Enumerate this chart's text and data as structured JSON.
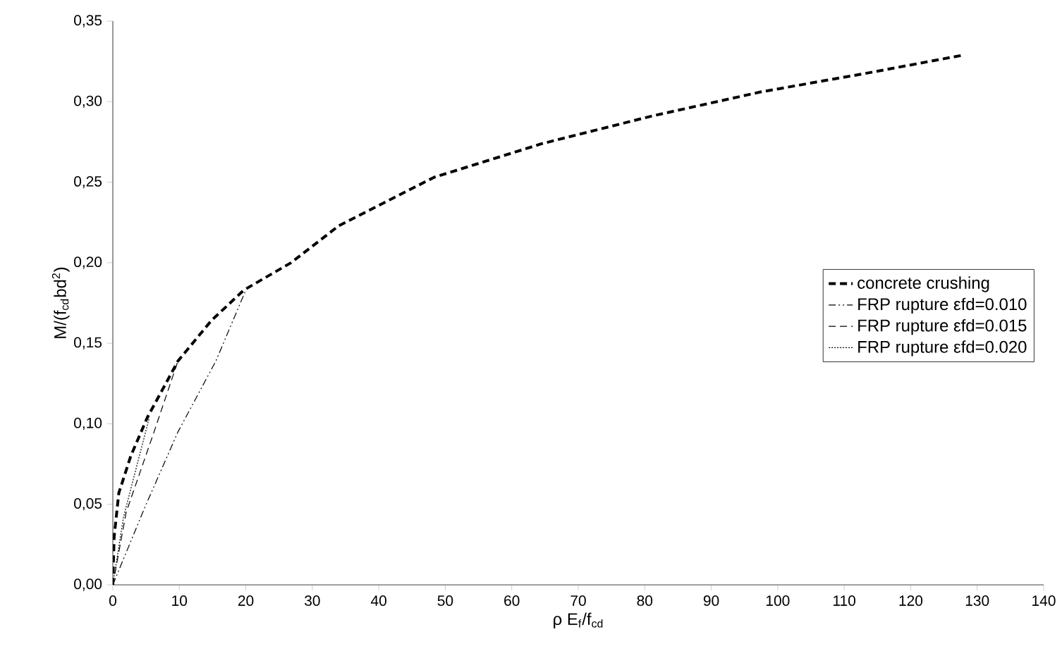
{
  "chart_data": {
    "type": "line",
    "xlabel": "ρ E$_{f}$/f$_{cd}$",
    "ylabel": "M/(f$_{cd}$bd$^{2}$)",
    "xlim": [
      0,
      140
    ],
    "xticks": [
      0,
      10,
      20,
      30,
      40,
      50,
      60,
      70,
      80,
      90,
      100,
      110,
      120,
      130,
      140
    ],
    "ylim": [
      0,
      0.35
    ],
    "yticks": [
      {
        "value": 0,
        "label": "0,00"
      },
      {
        "value": 0.05,
        "label": "0,05"
      },
      {
        "value": 0.1,
        "label": "0,10"
      },
      {
        "value": 0.15,
        "label": "0,15"
      },
      {
        "value": 0.2,
        "label": "0,20"
      },
      {
        "value": 0.25,
        "label": "0,25"
      },
      {
        "value": 0.3,
        "label": "0,30"
      },
      {
        "value": 0.35,
        "label": "0,35"
      }
    ],
    "grid": false,
    "legend": "right",
    "marker": "none",
    "series": [
      {
        "name": "concrete crushing",
        "color": "#000000",
        "line_style": "dashed",
        "x": [
          0,
          0.2,
          0.9,
          2.7,
          5.2,
          9.8,
          14.8,
          19.7,
          26.8,
          34,
          48.3,
          64.6,
          81,
          97.4,
          113.8,
          128
        ],
        "values": [
          0,
          0.03,
          0.057,
          0.08,
          0.104,
          0.139,
          0.164,
          0.183,
          0.2,
          0.223,
          0.253,
          0.274,
          0.291,
          0.306,
          0.318,
          0.329
        ]
      },
      {
        "name": "FRP rupture εfd=0.010",
        "color": "#000000",
        "line_style": "dashdotted",
        "x": [
          0,
          4.8,
          9.8,
          15.5,
          20
        ],
        "values": [
          0,
          0.048,
          0.095,
          0.139,
          0.183
        ]
      },
      {
        "name": "FRP rupture εfd=0.015",
        "color": "#000000",
        "line_style": "dashed",
        "x": [
          0,
          2,
          6.2,
          9.8
        ],
        "values": [
          0,
          0.045,
          0.095,
          0.139
        ]
      },
      {
        "name": "FRP rupture εfd=0.020",
        "color": "#000000",
        "line_style": "dotted",
        "x": [
          0,
          1.6,
          5.5
        ],
        "values": [
          0,
          0.042,
          0.104
        ]
      }
    ]
  }
}
